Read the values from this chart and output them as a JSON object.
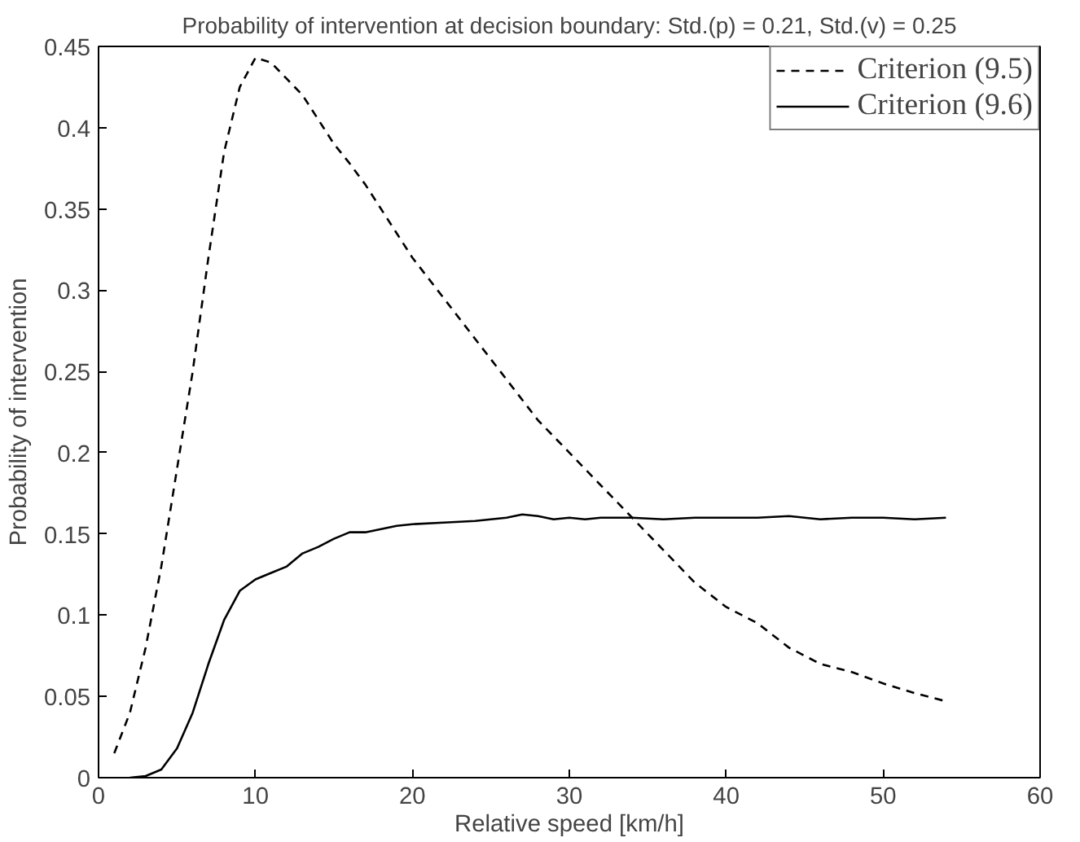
{
  "chart_data": {
    "type": "line",
    "title": "Probability of intervention at decision boundary: Std.(p) = 0.21, Std.(v) = 0.25",
    "xlabel": "Relative speed [km/h]",
    "ylabel": "Probability of intervention",
    "xlim": [
      0,
      60
    ],
    "xticks": [
      0,
      10,
      20,
      30,
      40,
      50,
      60
    ],
    "ylim": [
      0,
      0.45
    ],
    "yticks": [
      0,
      0.05,
      0.1,
      0.15,
      0.2,
      0.25,
      0.3,
      0.35,
      0.4,
      0.45
    ],
    "grid": false,
    "legend": "top right",
    "marker": "none",
    "series": [
      {
        "name": "Criterion (9.5)",
        "color": "#000000",
        "line_style": "dashed",
        "x": [
          1,
          2,
          3,
          4,
          5,
          6,
          7,
          8,
          9,
          10,
          11,
          12,
          13,
          14,
          15,
          16,
          17,
          18,
          19,
          20,
          22,
          24,
          26,
          28,
          30,
          32,
          34,
          36,
          38,
          40,
          42,
          44,
          46,
          48,
          50,
          52,
          54
        ],
        "values": [
          0.015,
          0.04,
          0.08,
          0.13,
          0.19,
          0.25,
          0.32,
          0.385,
          0.425,
          0.443,
          0.44,
          0.43,
          0.42,
          0.405,
          0.39,
          0.378,
          0.365,
          0.35,
          0.335,
          0.32,
          0.295,
          0.27,
          0.245,
          0.22,
          0.2,
          0.18,
          0.16,
          0.14,
          0.12,
          0.105,
          0.095,
          0.08,
          0.07,
          0.065,
          0.058,
          0.052,
          0.047
        ]
      },
      {
        "name": "Criterion (9.6)",
        "color": "#000000",
        "line_style": "solid",
        "x": [
          2,
          3,
          4,
          5,
          6,
          7,
          8,
          9,
          10,
          11,
          12,
          13,
          14,
          15,
          16,
          17,
          18,
          19,
          20,
          22,
          24,
          26,
          27,
          28,
          29,
          30,
          31,
          32,
          34,
          36,
          38,
          40,
          42,
          44,
          46,
          48,
          50,
          52,
          54
        ],
        "values": [
          0,
          0.001,
          0.005,
          0.018,
          0.04,
          0.07,
          0.097,
          0.115,
          0.122,
          0.126,
          0.13,
          0.138,
          0.142,
          0.147,
          0.151,
          0.151,
          0.153,
          0.155,
          0.156,
          0.157,
          0.158,
          0.16,
          0.162,
          0.161,
          0.159,
          0.16,
          0.159,
          0.16,
          0.16,
          0.159,
          0.16,
          0.16,
          0.16,
          0.161,
          0.159,
          0.16,
          0.16,
          0.159,
          0.16
        ]
      }
    ]
  }
}
